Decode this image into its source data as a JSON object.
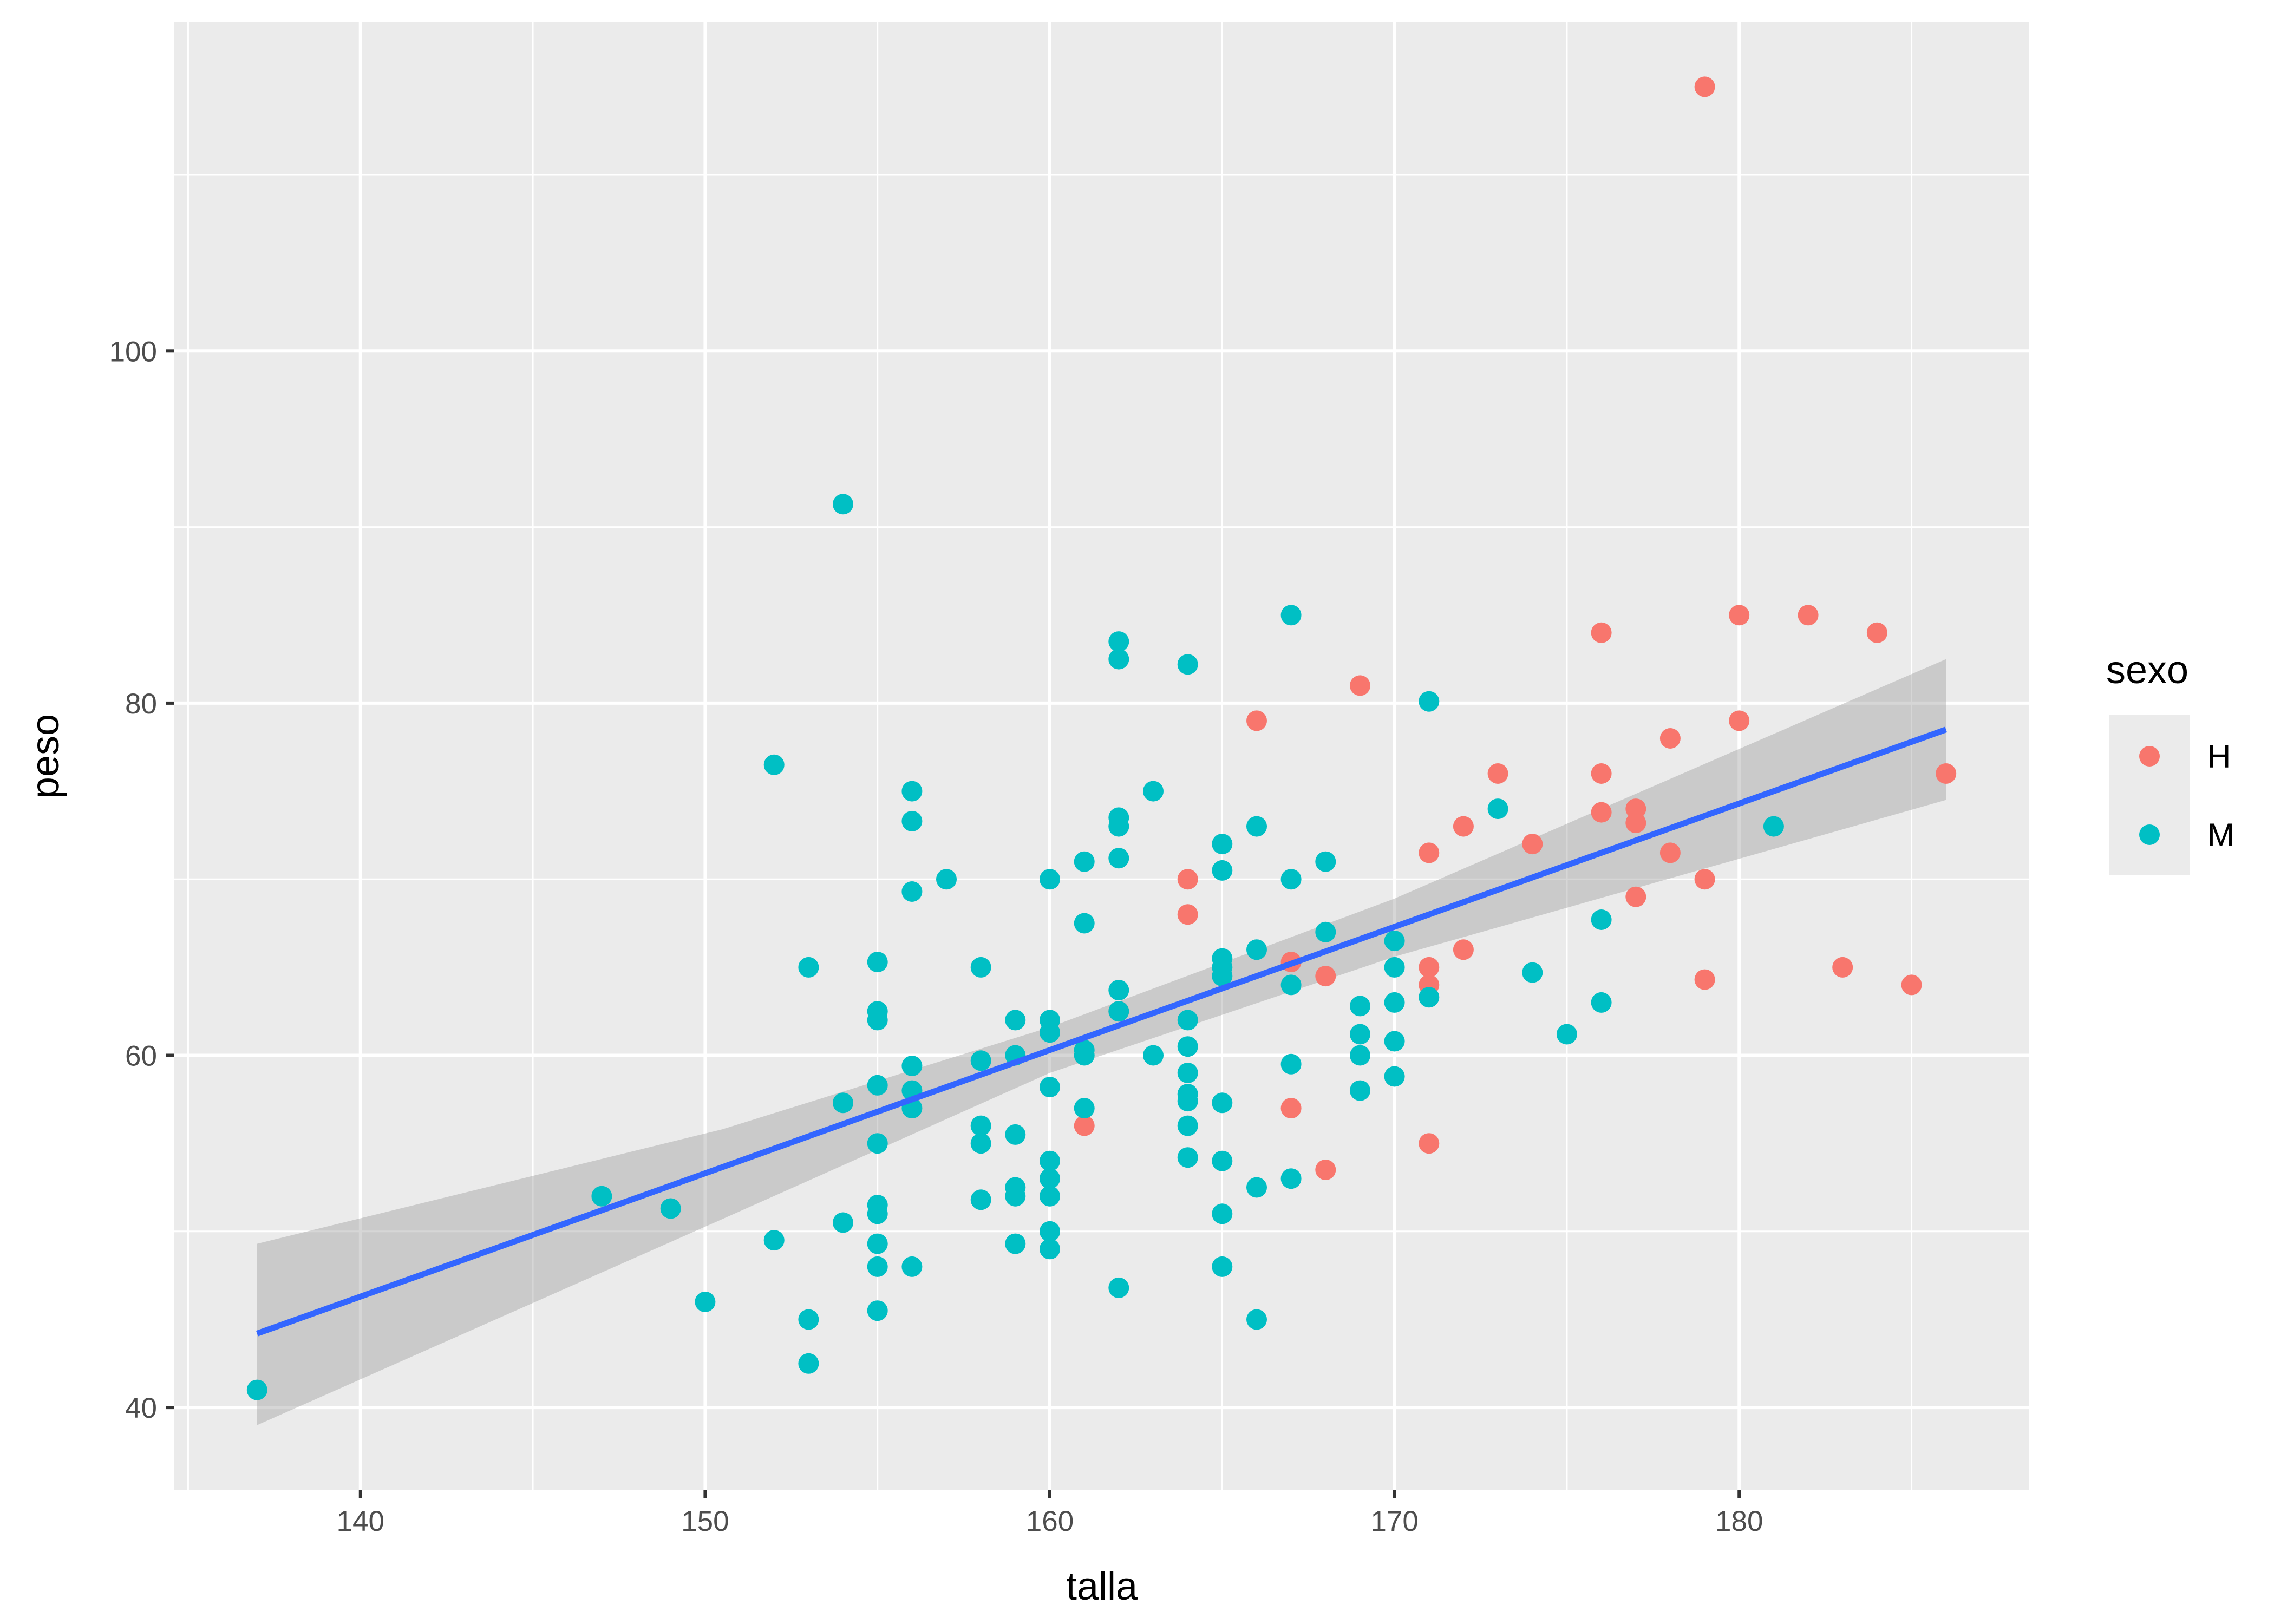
{
  "chart_data": {
    "type": "scatter",
    "title": "",
    "xlabel": "talla",
    "ylabel": "peso",
    "xlim": [
      134.6,
      188.4
    ],
    "ylim": [
      35.3,
      118.7
    ],
    "x_ticks": [
      140,
      150,
      160,
      170,
      180
    ],
    "x_tick_labels": [
      "140",
      "150",
      "160",
      "170",
      "180"
    ],
    "y_ticks": [
      40,
      60,
      80,
      100
    ],
    "y_tick_labels": [
      "40",
      "60",
      "80",
      "100"
    ],
    "grid": true,
    "legend": {
      "title": "sexo",
      "position": "right",
      "entries": [
        {
          "key": "H",
          "label": "H",
          "color": "#F8766D"
        },
        {
          "key": "M",
          "label": "M",
          "color": "#00BFC4"
        }
      ]
    },
    "series": [
      {
        "name": "H",
        "color": "#F8766D",
        "points": [
          [
            179,
            115
          ],
          [
            180,
            85
          ],
          [
            182,
            85
          ],
          [
            184,
            84
          ],
          [
            176,
            84
          ],
          [
            169,
            81
          ],
          [
            166,
            79
          ],
          [
            180,
            79
          ],
          [
            178,
            78
          ],
          [
            173,
            76
          ],
          [
            176,
            76
          ],
          [
            186,
            76
          ],
          [
            176,
            73.8
          ],
          [
            177,
            74
          ],
          [
            177,
            73.2
          ],
          [
            172,
            73
          ],
          [
            171,
            71.5
          ],
          [
            174,
            72
          ],
          [
            178,
            71.5
          ],
          [
            164,
            70
          ],
          [
            179,
            70
          ],
          [
            177,
            69
          ],
          [
            164,
            68
          ],
          [
            172,
            66
          ],
          [
            167,
            65.3
          ],
          [
            168,
            64.5
          ],
          [
            171,
            65
          ],
          [
            171,
            64
          ],
          [
            179,
            64.3
          ],
          [
            183,
            65
          ],
          [
            185,
            64
          ],
          [
            162,
            62.5
          ],
          [
            161,
            56
          ],
          [
            167,
            57
          ],
          [
            168,
            53.5
          ],
          [
            171,
            55
          ]
        ]
      },
      {
        "name": "M",
        "color": "#00BFC4",
        "points": [
          [
            137,
            41
          ],
          [
            147,
            52
          ],
          [
            149,
            51.3
          ],
          [
            150,
            46
          ],
          [
            152,
            76.5
          ],
          [
            152,
            49.5
          ],
          [
            153,
            65
          ],
          [
            153,
            45
          ],
          [
            153,
            42.5
          ],
          [
            154,
            91.3
          ],
          [
            154,
            57.3
          ],
          [
            154,
            50.5
          ],
          [
            155,
            65.3
          ],
          [
            155,
            62.5
          ],
          [
            155,
            62
          ],
          [
            155,
            58.3
          ],
          [
            155,
            55
          ],
          [
            155,
            51.5
          ],
          [
            155,
            51
          ],
          [
            155,
            49.3
          ],
          [
            155,
            48
          ],
          [
            155,
            45.5
          ],
          [
            156,
            75
          ],
          [
            156,
            73.3
          ],
          [
            156,
            69.3
          ],
          [
            156,
            59.4
          ],
          [
            156,
            58
          ],
          [
            156,
            57
          ],
          [
            156,
            48
          ],
          [
            157,
            70
          ],
          [
            158,
            65
          ],
          [
            158,
            59.7
          ],
          [
            158,
            56
          ],
          [
            158,
            55
          ],
          [
            158,
            51.8
          ],
          [
            159,
            62
          ],
          [
            159,
            60
          ],
          [
            159,
            55.5
          ],
          [
            159,
            52.5
          ],
          [
            159,
            52
          ],
          [
            159,
            49.3
          ],
          [
            160,
            70
          ],
          [
            160,
            62
          ],
          [
            160,
            61.3
          ],
          [
            160,
            58.2
          ],
          [
            160,
            54
          ],
          [
            160,
            53
          ],
          [
            160,
            52
          ],
          [
            160,
            50
          ],
          [
            160,
            49
          ],
          [
            161,
            71
          ],
          [
            161,
            67.5
          ],
          [
            161,
            60.3
          ],
          [
            161,
            60
          ],
          [
            161,
            57
          ],
          [
            162,
            83.5
          ],
          [
            162,
            82.5
          ],
          [
            162,
            73.5
          ],
          [
            162,
            73
          ],
          [
            162,
            71.2
          ],
          [
            162,
            63.7
          ],
          [
            162,
            62.5
          ],
          [
            162,
            46.8
          ],
          [
            163,
            75
          ],
          [
            163,
            60
          ],
          [
            164,
            82.2
          ],
          [
            164,
            62
          ],
          [
            164,
            60.5
          ],
          [
            164,
            59
          ],
          [
            164,
            57.8
          ],
          [
            164,
            57.4
          ],
          [
            164,
            56
          ],
          [
            164,
            54.2
          ],
          [
            165,
            72
          ],
          [
            165,
            70.5
          ],
          [
            165,
            65.5
          ],
          [
            165,
            65
          ],
          [
            165,
            64.5
          ],
          [
            165,
            57.3
          ],
          [
            165,
            54
          ],
          [
            165,
            51
          ],
          [
            165,
            48
          ],
          [
            166,
            73
          ],
          [
            166,
            66
          ],
          [
            166,
            52.5
          ],
          [
            166,
            45
          ],
          [
            167,
            85
          ],
          [
            167,
            70
          ],
          [
            167,
            64
          ],
          [
            167,
            59.5
          ],
          [
            167,
            53
          ],
          [
            168,
            71
          ],
          [
            168,
            67
          ],
          [
            169,
            62.8
          ],
          [
            169,
            61.2
          ],
          [
            169,
            60
          ],
          [
            169,
            58
          ],
          [
            170,
            66.5
          ],
          [
            170,
            65
          ],
          [
            170,
            63
          ],
          [
            170,
            60.8
          ],
          [
            170,
            58.8
          ],
          [
            171,
            80.1
          ],
          [
            171,
            63.3
          ],
          [
            173,
            74
          ],
          [
            174,
            64.7
          ],
          [
            175,
            61.2
          ],
          [
            176,
            67.7
          ],
          [
            176,
            63
          ],
          [
            181,
            73
          ]
        ]
      }
    ],
    "smooth": {
      "method": "lm",
      "color": "#3366FF",
      "line": [
        [
          137,
          44.2
        ],
        [
          186,
          78.5
        ]
      ],
      "band_upper": [
        [
          137,
          49.3
        ],
        [
          150.5,
          55.8
        ],
        [
          160,
          61.6
        ],
        [
          170,
          68.9
        ],
        [
          186,
          82.5
        ]
      ],
      "band_lower": [
        [
          137,
          39.0
        ],
        [
          150.5,
          50.7
        ],
        [
          160,
          59.0
        ],
        [
          170,
          65.6
        ],
        [
          186,
          74.5
        ]
      ]
    }
  }
}
